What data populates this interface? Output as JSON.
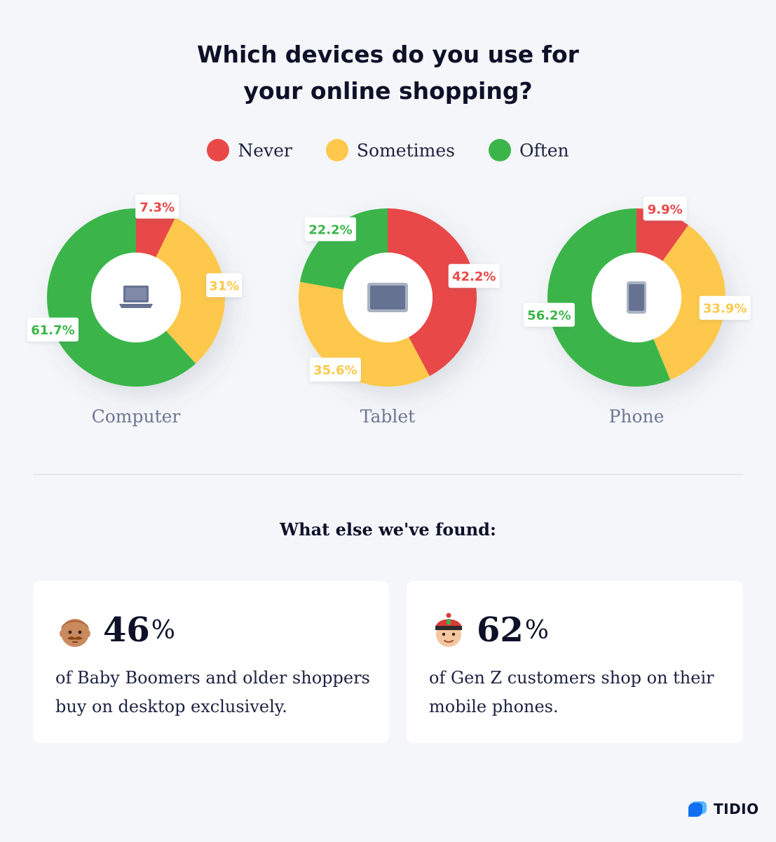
{
  "title": {
    "line1": "Which devices do you use for",
    "line2": "your online shopping?"
  },
  "colors": {
    "never": "#e84848",
    "sometimes": "#fdc84b",
    "often": "#3bb54a",
    "background": "#f4f6f9",
    "device_icon": "#667291"
  },
  "legend": [
    {
      "label": "Never",
      "color": "#e84848"
    },
    {
      "label": "Sometimes",
      "color": "#fdc84b"
    },
    {
      "label": "Often",
      "color": "#3bb54a"
    }
  ],
  "chart_data": [
    {
      "type": "pie",
      "donut": true,
      "name": "Computer",
      "icon": "laptop-icon",
      "categories": [
        "Never",
        "Sometimes",
        "Often"
      ],
      "values": [
        7.3,
        31,
        61.7
      ],
      "labels": [
        "7.3%",
        "31%",
        "61.7%"
      ]
    },
    {
      "type": "pie",
      "donut": true,
      "name": "Tablet",
      "icon": "tablet-icon",
      "categories": [
        "Never",
        "Sometimes",
        "Often"
      ],
      "values": [
        42.2,
        35.6,
        22.2
      ],
      "labels": [
        "42.2%",
        "35.6%",
        "22.2%"
      ]
    },
    {
      "type": "pie",
      "donut": true,
      "name": "Phone",
      "icon": "phone-icon",
      "categories": [
        "Never",
        "Sometimes",
        "Often"
      ],
      "values": [
        9.9,
        33.9,
        56.2
      ],
      "labels": [
        "9.9%",
        "33.9%",
        "56.2%"
      ]
    }
  ],
  "findings": {
    "heading": "What else we've found:",
    "cards": [
      {
        "icon": "older-man-emoji-icon",
        "value": "46",
        "unit": "%",
        "text": "of Baby Boomers and older shoppers buy on desktop exclusively."
      },
      {
        "icon": "young-person-emoji-icon",
        "value": "62",
        "unit": "%",
        "text": "of Gen Z customers shop on their mobile phones."
      }
    ]
  },
  "brand": {
    "name": "TIDIO",
    "icon": "tidio-logo-icon"
  }
}
